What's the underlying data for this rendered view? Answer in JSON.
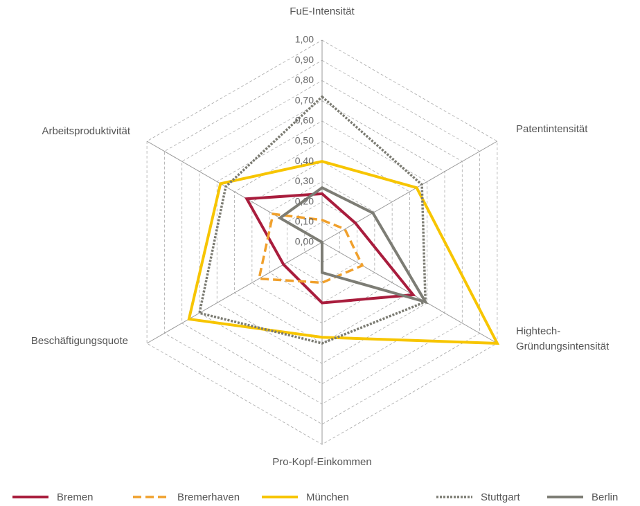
{
  "chart_data": {
    "type": "radar",
    "categories": [
      "FuE-Intensität",
      "Patentintensität",
      "Hightech-Gründungsintensität",
      "Pro-Kopf-Einkommen",
      "Beschäftigungsquote",
      "Arbeitsproduktivität"
    ],
    "ylim": [
      0,
      1
    ],
    "yticks": [
      {
        "value": 0,
        "label": "0,00"
      },
      {
        "value": 0.1,
        "label": "0,10"
      },
      {
        "value": 0.2,
        "label": "0,20"
      },
      {
        "value": 0.3,
        "label": "0,30"
      },
      {
        "value": 0.4,
        "label": "0,40"
      },
      {
        "value": 0.5,
        "label": "0,50"
      },
      {
        "value": 0.6,
        "label": "0,60"
      },
      {
        "value": 0.7,
        "label": "0,70"
      },
      {
        "value": 0.8,
        "label": "0,80"
      },
      {
        "value": 0.9,
        "label": "0,90"
      },
      {
        "value": 1,
        "label": "1,00"
      }
    ],
    "grid": true,
    "series": [
      {
        "name": "Bremen",
        "color": "#a91d3d",
        "dash": "solid",
        "values": [
          0.24,
          0.19,
          0.52,
          0.3,
          0.22,
          0.43
        ]
      },
      {
        "name": "Bremerhaven",
        "color": "#f0a02c",
        "dash": "dashed",
        "values": [
          0.11,
          0.13,
          0.23,
          0.2,
          0.36,
          0.28
        ]
      },
      {
        "name": "München",
        "color": "#f7c500",
        "dash": "solid",
        "values": [
          0.4,
          0.54,
          1.0,
          0.47,
          0.76,
          0.58
        ]
      },
      {
        "name": "Stuttgart",
        "color": "#7b7b72",
        "dash": "dotted",
        "values": [
          0.72,
          0.57,
          0.59,
          0.5,
          0.7,
          0.55
        ]
      },
      {
        "name": "Berlin",
        "color": "#7d7d75",
        "dash": "solid",
        "values": [
          0.27,
          0.29,
          0.59,
          0.15,
          0.0,
          0.24
        ]
      }
    ]
  }
}
